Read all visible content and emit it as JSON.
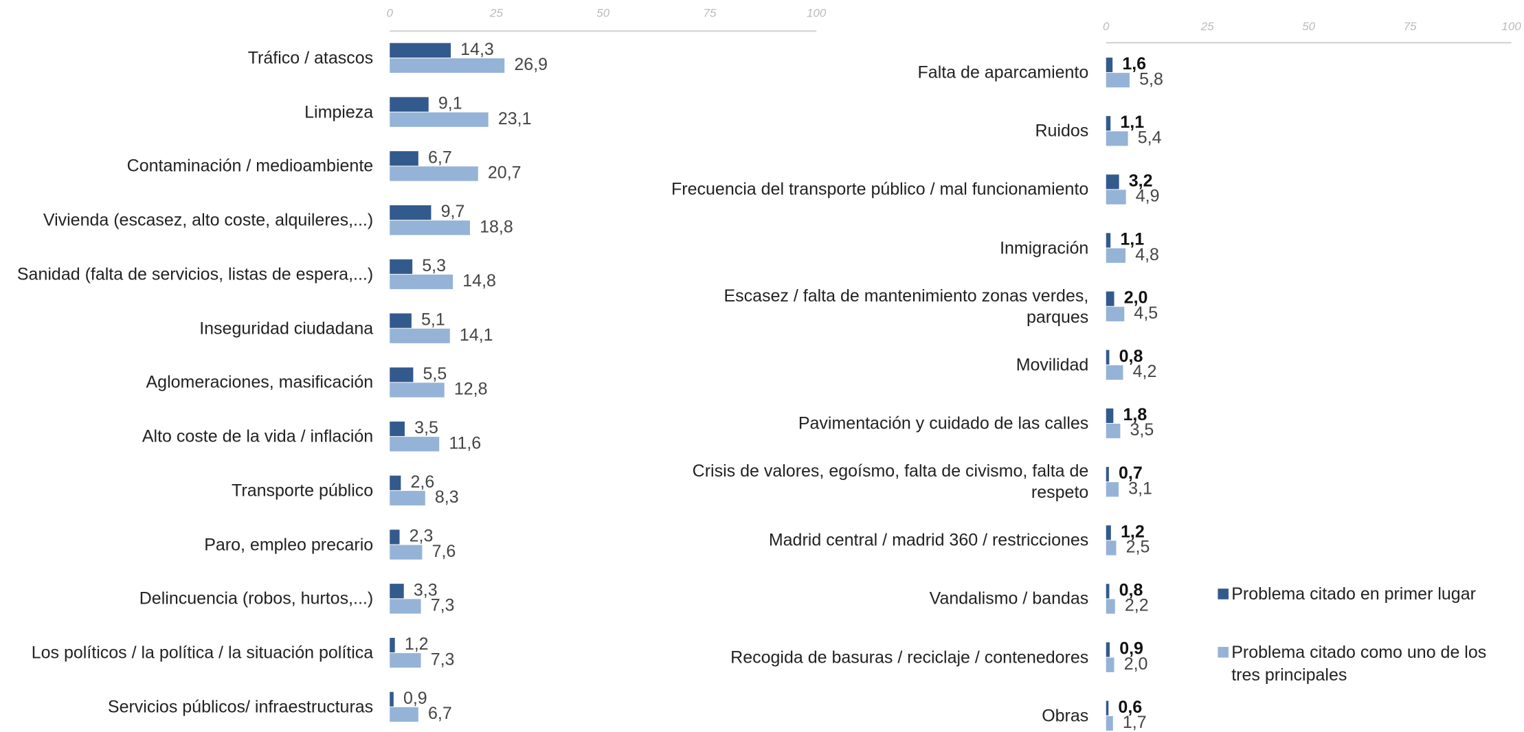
{
  "chart_data": [
    {
      "type": "bar",
      "orientation": "horizontal",
      "categories": [
        "Tráfico / atascos",
        "Limpieza",
        "Contaminación / medioambiente",
        "Vivienda (escasez, alto coste, alquileres,...)",
        "Sanidad (falta de servicios, listas de espera,...)",
        "Inseguridad ciudadana",
        "Aglomeraciones, masificación",
        "Alto coste de la vida / inflación",
        "Transporte público",
        "Paro, empleo precario",
        "Delincuencia (robos, hurtos,...)",
        "Los políticos / la política / la situación política",
        "Servicios públicos/ infraestructuras"
      ],
      "series": [
        {
          "color": "#335a8c",
          "values": [
            14.3,
            9.1,
            6.7,
            9.7,
            5.3,
            5.1,
            5.5,
            3.5,
            2.6,
            2.3,
            3.3,
            1.2,
            0.9
          ],
          "value_labels": [
            "14,3",
            "9,1",
            "6,7",
            "9,7",
            "5,3",
            "5,1",
            "5,5",
            "3,5",
            "2,6",
            "2,3",
            "3,3",
            "1,2",
            "0,9"
          ],
          "label_weight": "normal"
        },
        {
          "color": "#95b3d7",
          "values": [
            26.9,
            23.1,
            20.7,
            18.8,
            14.8,
            14.1,
            12.8,
            11.6,
            8.3,
            7.6,
            7.3,
            7.3,
            6.7
          ],
          "value_labels": [
            "26,9",
            "23,1",
            "20,7",
            "18,8",
            "14,8",
            "14,1",
            "12,8",
            "11,6",
            "8,3",
            "7,6",
            "7,3",
            "7,3",
            "6,7"
          ],
          "label_weight": "normal"
        }
      ],
      "xlim": [
        0,
        100
      ],
      "xticks": [
        0,
        25,
        50,
        75,
        100
      ]
    },
    {
      "type": "bar",
      "orientation": "horizontal",
      "categories": [
        "Falta de aparcamiento",
        "Ruidos",
        "Frecuencia del transporte público / mal funcionamiento",
        "Inmigración",
        "Escasez / falta de mantenimiento zonas verdes, parques",
        "Movilidad",
        "Pavimentación y cuidado de las calles",
        "Crisis de valores, egoísmo, falta de civismo, falta de respeto",
        "Madrid central / madrid 360 / restricciones",
        "Vandalismo / bandas",
        "Recogida de basuras / reciclaje / contenedores",
        "Obras"
      ],
      "series": [
        {
          "name": "Problema citado en primer lugar",
          "color": "#335a8c",
          "values": [
            1.6,
            1.1,
            3.2,
            1.1,
            2.0,
            0.8,
            1.8,
            0.7,
            1.2,
            0.8,
            0.9,
            0.6
          ],
          "value_labels": [
            "1,6",
            "1,1",
            "3,2",
            "1,1",
            "2,0",
            "0,8",
            "1,8",
            "0,7",
            "1,2",
            "0,8",
            "0,9",
            "0,6"
          ],
          "label_weight": "bold"
        },
        {
          "name": "Problema citado como uno de los tres principales",
          "color": "#95b3d7",
          "values": [
            5.8,
            5.4,
            4.9,
            4.8,
            4.5,
            4.2,
            3.5,
            3.1,
            2.5,
            2.2,
            2.0,
            1.7
          ],
          "value_labels": [
            "5,8",
            "5,4",
            "4,9",
            "4,8",
            "4,5",
            "4,2",
            "3,5",
            "3,1",
            "2,5",
            "2,2",
            "2,0",
            "1,7"
          ],
          "label_weight": "normal"
        }
      ],
      "xlim": [
        0,
        100
      ],
      "xticks": [
        0,
        25,
        50,
        75,
        100
      ],
      "legend": "right"
    }
  ]
}
